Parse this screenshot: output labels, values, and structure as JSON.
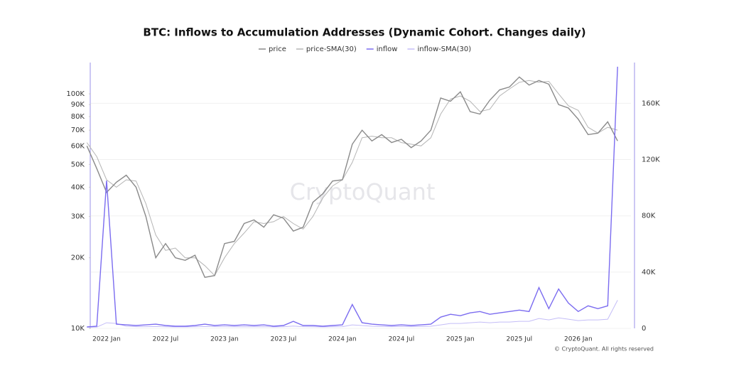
{
  "chart_data": {
    "type": "line",
    "title": "BTC: Inflows to Accumulation Addresses (Dynamic Cohort. Changes daily)",
    "watermark": "CryptoQuant",
    "credit": "© CryptoQuant. All rights reserved",
    "x": [
      "2021 Nov",
      "2021 Dec",
      "2022 Jan",
      "2022 Feb",
      "2022 Mar",
      "2022 Apr",
      "2022 May",
      "2022 Jun",
      "2022 Jul",
      "2022 Aug",
      "2022 Sep",
      "2022 Oct",
      "2022 Nov",
      "2022 Dec",
      "2023 Jan",
      "2023 Feb",
      "2023 Mar",
      "2023 Apr",
      "2023 May",
      "2023 Jun",
      "2023 Jul",
      "2023 Aug",
      "2023 Sep",
      "2023 Oct",
      "2023 Nov",
      "2023 Dec",
      "2024 Jan",
      "2024 Feb",
      "2024 Mar",
      "2024 Apr",
      "2024 May",
      "2024 Jun",
      "2024 Jul",
      "2024 Aug",
      "2024 Sep",
      "2024 Oct",
      "2024 Nov",
      "2024 Dec",
      "2025 Jan",
      "2025 Feb",
      "2025 Mar",
      "2025 Apr",
      "2025 May",
      "2025 Jun",
      "2025 Jul",
      "2025 Aug",
      "2025 Sep",
      "2025 Oct",
      "2025 Nov",
      "2025 Dec",
      "2026 Jan",
      "2026 Feb",
      "2026 Mar",
      "2026 Apr",
      "2026 May"
    ],
    "xticks": [
      "2022 Jan",
      "2022 Jul",
      "2023 Jan",
      "2023 Jul",
      "2024 Jan",
      "2024 Jul",
      "2025 Jan",
      "2025 Jul",
      "2026 Jan"
    ],
    "ylog": true,
    "ylim": [
      10000,
      136000
    ],
    "yticks": [
      {
        "value": 10000,
        "label": "10K"
      },
      {
        "value": 20000,
        "label": "20K"
      },
      {
        "value": 30000,
        "label": "30K"
      },
      {
        "value": 40000,
        "label": "40K"
      },
      {
        "value": 50000,
        "label": "50K"
      },
      {
        "value": 60000,
        "label": "60K"
      },
      {
        "value": 70000,
        "label": "70K"
      },
      {
        "value": 80000,
        "label": "80K"
      },
      {
        "value": 90000,
        "label": "90K"
      },
      {
        "value": 100000,
        "label": "100K"
      }
    ],
    "y2lim": [
      0,
      189000
    ],
    "y2ticks": [
      0,
      {
        "value": 40000,
        "label": "40K"
      },
      {
        "value": 80000,
        "label": "80K"
      },
      {
        "value": 120000,
        "label": "120K"
      },
      {
        "value": 160000,
        "label": "160K"
      }
    ],
    "grid": true,
    "series": [
      {
        "name": "price",
        "color": "#8a8a8a",
        "values": [
          60000,
          48000,
          38000,
          42000,
          45000,
          40000,
          30000,
          20000,
          23000,
          20000,
          19500,
          20500,
          16500,
          16800,
          23000,
          23500,
          28000,
          29000,
          27000,
          30500,
          29500,
          26000,
          27000,
          34500,
          37500,
          42500,
          43000,
          61000,
          70000,
          63000,
          67000,
          62000,
          64000,
          59000,
          63000,
          70000,
          96000,
          93000,
          102000,
          84000,
          82000,
          94000,
          104000,
          107000,
          118000,
          109000,
          114000,
          110000,
          90000,
          87000,
          78000,
          67000,
          68000,
          76000,
          63000
        ]
      },
      {
        "name": "price-SMA(30)",
        "color": "#b5b5b5",
        "values": [
          62000,
          54000,
          43000,
          40000,
          43000,
          42500,
          34000,
          25000,
          21500,
          22000,
          20000,
          20000,
          18500,
          16800,
          20000,
          23000,
          25500,
          28500,
          28000,
          28500,
          30000,
          28000,
          26500,
          30000,
          36000,
          40500,
          43000,
          51000,
          65000,
          66000,
          65000,
          65000,
          62000,
          61000,
          60000,
          65000,
          82000,
          95000,
          98000,
          93000,
          84000,
          86000,
          98000,
          105000,
          112000,
          114000,
          112000,
          113000,
          100000,
          89000,
          85000,
          72000,
          68000,
          72000,
          70000
        ]
      },
      {
        "name": "inflow",
        "color": "#7b6cf0",
        "axis": "y2",
        "values": [
          1000,
          1500,
          105000,
          3000,
          2500,
          2000,
          2500,
          3000,
          2000,
          1500,
          1500,
          2000,
          3000,
          2000,
          2500,
          2000,
          2500,
          2000,
          2500,
          1500,
          2000,
          5000,
          2000,
          2000,
          1500,
          2000,
          2500,
          17000,
          4000,
          3000,
          2500,
          2000,
          2500,
          2000,
          2500,
          3000,
          8000,
          10000,
          9000,
          11000,
          12000,
          10000,
          11000,
          12000,
          13000,
          12000,
          29000,
          14000,
          28000,
          18000,
          12000,
          16000,
          14000,
          16000,
          186000
        ]
      },
      {
        "name": "inflow-SMA(30)",
        "color": "#c4bdf7",
        "axis": "y2",
        "values": [
          800,
          900,
          4000,
          3500,
          1500,
          1200,
          1200,
          1300,
          1100,
          1000,
          1000,
          1100,
          1300,
          1200,
          1200,
          1100,
          1200,
          1100,
          1200,
          1000,
          1100,
          1600,
          1200,
          1100,
          1000,
          1100,
          1200,
          2500,
          2000,
          1500,
          1300,
          1200,
          1300,
          1200,
          1300,
          1500,
          2500,
          3500,
          3500,
          4000,
          4500,
          4000,
          4500,
          4500,
          5000,
          5000,
          7000,
          6000,
          7500,
          6500,
          5500,
          6000,
          6000,
          6500,
          20000
        ]
      }
    ]
  }
}
